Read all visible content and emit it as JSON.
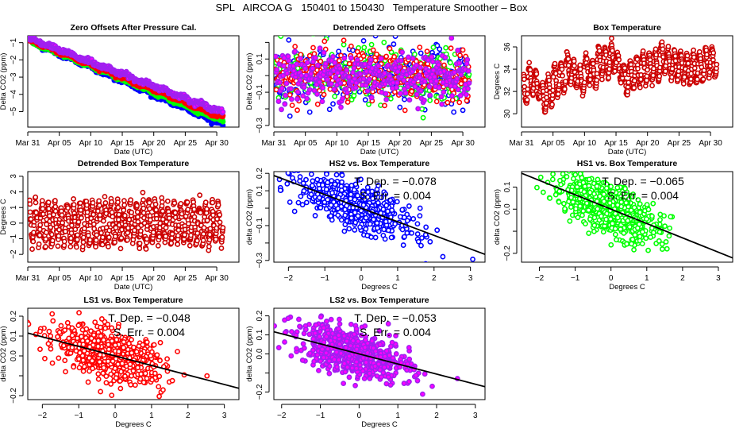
{
  "page": {
    "title": "SPL   AIRCOA G   150401 to 150430   Temperature Smoother – Box"
  },
  "colors": {
    "HS2": "#0000ff",
    "HS1": "#00ff00",
    "LS1": "#ff0000",
    "LS2": "#a020f0",
    "LS2_fill": "#ff00ff",
    "temperature": "#cc0000",
    "fit_line": "#000000",
    "axis": "#000000"
  },
  "chart_data": [
    {
      "id": "zero-offsets",
      "type": "scatter",
      "title": "Zero Offsets After Pressure Cal.",
      "xlabel": "Date (UTC)",
      "ylabel": "Delta CO2 (ppm)",
      "xlim_days": [
        0,
        31
      ],
      "x_tick_labels": [
        "Mar 31",
        "Apr 05",
        "Apr 10",
        "Apr 15",
        "Apr 20",
        "Apr 25",
        "Apr 30"
      ],
      "x_tick_days": [
        0,
        5,
        10,
        15,
        20,
        25,
        30
      ],
      "ylim": [
        -5.9,
        -0.6
      ],
      "y_ticks": [
        -1,
        -2,
        -3,
        -4,
        -5
      ],
      "series": [
        {
          "name": "HS2",
          "color_key": "HS2",
          "start": -0.9,
          "end": -5.75,
          "noise": 0.12
        },
        {
          "name": "HS1",
          "color_key": "HS1",
          "start": -0.9,
          "end": -5.55,
          "noise": 0.1
        },
        {
          "name": "LS1",
          "color_key": "LS1",
          "start": -0.85,
          "end": -5.35,
          "noise": 0.1
        },
        {
          "name": "LS2",
          "color_key": "LS2",
          "start": -0.75,
          "end": -5.05,
          "noise": 0.12
        }
      ]
    },
    {
      "id": "detrended-zero-offsets",
      "type": "scatter",
      "title": "Detrended Zero Offsets",
      "xlabel": "Date (UTC)",
      "ylabel": "Delta CO2 (ppm)",
      "xlim_days": [
        0,
        31
      ],
      "x_tick_labels": [
        "Mar 31",
        "Apr 05",
        "Apr 10",
        "Apr 15",
        "Apr 20",
        "Apr 25",
        "Apr 30"
      ],
      "x_tick_days": [
        0,
        5,
        10,
        15,
        20,
        25,
        30
      ],
      "ylim": [
        -0.31,
        0.24
      ],
      "y_ticks": [
        0.2,
        0.1,
        0.0,
        -0.1,
        -0.2,
        -0.3
      ],
      "y_tick_labels": [
        "",
        "0.1",
        "",
        "-0.1",
        "",
        "-0.3"
      ],
      "series": [
        {
          "name": "HS2",
          "color_key": "HS2",
          "sd": 0.08
        },
        {
          "name": "HS1",
          "color_key": "HS1",
          "sd": 0.075
        },
        {
          "name": "LS1",
          "color_key": "LS1",
          "sd": 0.07
        },
        {
          "name": "LS2",
          "color_key": "LS2",
          "sd": 0.07
        }
      ]
    },
    {
      "id": "box-temperature",
      "type": "scatter",
      "title": "Box Temperature",
      "xlabel": "Date (UTC)",
      "ylabel": "Degrees C",
      "xlim_days": [
        0,
        31
      ],
      "x_tick_labels": [
        "Mar 31",
        "Apr 05",
        "Apr 10",
        "Apr 15",
        "Apr 20",
        "Apr 25",
        "Apr 30"
      ],
      "x_tick_days": [
        0,
        5,
        10,
        15,
        20,
        25,
        30
      ],
      "ylim": [
        28.8,
        37.0
      ],
      "y_ticks": [
        30,
        32,
        34,
        36
      ],
      "daily_means": [
        32.2,
        33.0,
        32.5,
        31.5,
        32.0,
        33.0,
        33.3,
        34.0,
        33.5,
        33.0,
        34.0,
        33.6,
        34.6,
        34.6,
        35.0,
        34.3,
        33.0,
        33.4,
        33.7,
        34.2,
        34.3,
        34.3,
        35.0,
        34.6,
        34.4,
        34.3,
        34.0,
        34.0,
        34.3,
        34.6,
        34.6
      ],
      "amplitude": 1.5
    },
    {
      "id": "detrended-box-temperature",
      "type": "scatter",
      "title": "Detrended Box Temperature",
      "xlabel": "Date (UTC)",
      "ylabel": "Degrees C",
      "xlim_days": [
        0,
        31
      ],
      "x_tick_labels": [
        "Mar 31",
        "Apr 05",
        "Apr 10",
        "Apr 15",
        "Apr 20",
        "Apr 25",
        "Apr 30"
      ],
      "x_tick_days": [
        0,
        5,
        10,
        15,
        20,
        25,
        30
      ],
      "ylim": [
        -2.5,
        3.3
      ],
      "y_ticks": [
        -2,
        -1,
        0,
        1,
        2,
        3
      ],
      "amplitude": 1.4
    },
    {
      "id": "hs2-vs-box",
      "type": "scatter",
      "title": "HS2 vs. Box Temperature",
      "xlabel": "Degrees C",
      "ylabel": "delta CO2 (ppm)",
      "xlim": [
        -2.4,
        3.4
      ],
      "ylim": [
        -0.31,
        0.21
      ],
      "x_ticks": [
        -2,
        -1,
        0,
        1,
        2,
        3
      ],
      "y_ticks": [
        0.2,
        0.1,
        0.0,
        -0.1,
        -0.2,
        -0.3
      ],
      "y_tick_labels": [
        "0.2",
        "0.1",
        "",
        "-0.1",
        "",
        "-0.3"
      ],
      "series_key": "HS2",
      "slope": -0.078,
      "intercept": 0.0,
      "noise_sd": 0.06,
      "stat_lines": [
        "T. Dep. =  −0.078",
        "S. Err. =  0.004"
      ]
    },
    {
      "id": "hs1-vs-box",
      "type": "scatter",
      "title": "HS1 vs. Box Temperature",
      "xlabel": "Degrees C",
      "ylabel": "delta CO2 (ppm)",
      "xlim": [
        -2.5,
        3.4
      ],
      "ylim": [
        -0.24,
        0.17
      ],
      "x_ticks": [
        -2,
        -1,
        0,
        1,
        2,
        3
      ],
      "y_ticks": [
        0.1,
        0.0,
        -0.1,
        -0.2
      ],
      "y_tick_labels": [
        "0.1",
        "0.0",
        "",
        "-0.2"
      ],
      "series_key": "HS1",
      "slope": -0.065,
      "intercept": 0.0,
      "noise_sd": 0.055,
      "stat_lines": [
        "T. Dep. =  −0.065",
        "S. Err. =  0.004"
      ]
    },
    {
      "id": "ls1-vs-box",
      "type": "scatter",
      "title": "LS1 vs. Box Temperature",
      "xlabel": "Degrees C",
      "ylabel": "delta CO2 (ppm)",
      "xlim": [
        -2.4,
        3.4
      ],
      "ylim": [
        -0.22,
        0.24
      ],
      "x_ticks": [
        -2,
        -1,
        0,
        1,
        2,
        3
      ],
      "y_ticks": [
        0.2,
        0.1,
        0.0,
        -0.1,
        -0.2
      ],
      "y_tick_labels": [
        "0.2",
        "0.1",
        "0.0",
        "",
        "-0.2"
      ],
      "series_key": "LS1",
      "slope": -0.048,
      "intercept": 0.0,
      "noise_sd": 0.06,
      "stat_lines": [
        "T. Dep. =  −0.048",
        "S. Err. =  0.004"
      ]
    },
    {
      "id": "ls2-vs-box",
      "type": "scatter",
      "title": "LS2 vs. Box Temperature",
      "xlabel": "Degrees C",
      "ylabel": "delta CO2 (ppm)",
      "xlim": [
        -2.2,
        3.25
      ],
      "ylim": [
        -0.24,
        0.24
      ],
      "x_ticks": [
        -2,
        -1,
        0,
        1,
        2,
        3
      ],
      "y_ticks": [
        0.2,
        0.1,
        0.0,
        -0.1,
        -0.2
      ],
      "y_tick_labels": [
        "0.2",
        "0.1",
        "0.0",
        "",
        "-0.2"
      ],
      "series_key": "LS2",
      "slope": -0.053,
      "intercept": 0.0,
      "noise_sd": 0.06,
      "stat_lines": [
        "T. Dep. =  −0.053",
        "S. Err. =  0.004"
      ]
    }
  ]
}
